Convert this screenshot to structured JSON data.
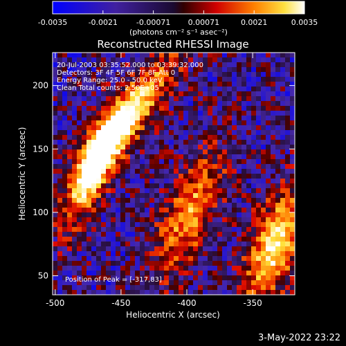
{
  "colorbar": {
    "tick_labels": [
      "-0.0035",
      "-0.0021",
      "-0.00071",
      "0.00071",
      "0.0021",
      "0.0035"
    ],
    "range": [
      -0.0035,
      0.0035
    ],
    "unit": "(photons cm⁻² s⁻¹ asec⁻²)"
  },
  "chart_data": {
    "type": "heatmap",
    "title": "Reconstructed RHESSI Image",
    "xlabel": "Heliocentric X (arcsec)",
    "ylabel": "Heliocentric Y (arcsec)",
    "xlim": [
      -502,
      -318
    ],
    "ylim": [
      35,
      226
    ],
    "xticks": [
      -500,
      -450,
      -400,
      -350
    ],
    "yticks": [
      50,
      100,
      150,
      200
    ],
    "annotations": {
      "time": "20-Jul-2003 03:35:52.000 to 03:39:32.000",
      "detectors": "Detectors: 3F 4F 5F 6F 7F 8F  Att 0",
      "energy": "Energy Range: 25.0 - 50.0 keV",
      "method": "Clean     Total counts: 2.50E+05",
      "peak": "Position of Peak = [-317,83]"
    },
    "sources": [
      {
        "x": -445,
        "y": 175,
        "sx": 12,
        "sy": 46,
        "angle_deg": 35,
        "amp": 1.0
      },
      {
        "x": -473,
        "y": 130,
        "sx": 10,
        "sy": 35,
        "angle_deg": 20,
        "amp": 0.75
      },
      {
        "x": -398,
        "y": 100,
        "sx": 14,
        "sy": 40,
        "angle_deg": 22,
        "amp": 0.8
      },
      {
        "x": -333,
        "y": 75,
        "sx": 14,
        "sy": 38,
        "angle_deg": 20,
        "amp": 1.0
      }
    ]
  },
  "footer": {
    "timestamp": "3-May-2022 23:22"
  }
}
